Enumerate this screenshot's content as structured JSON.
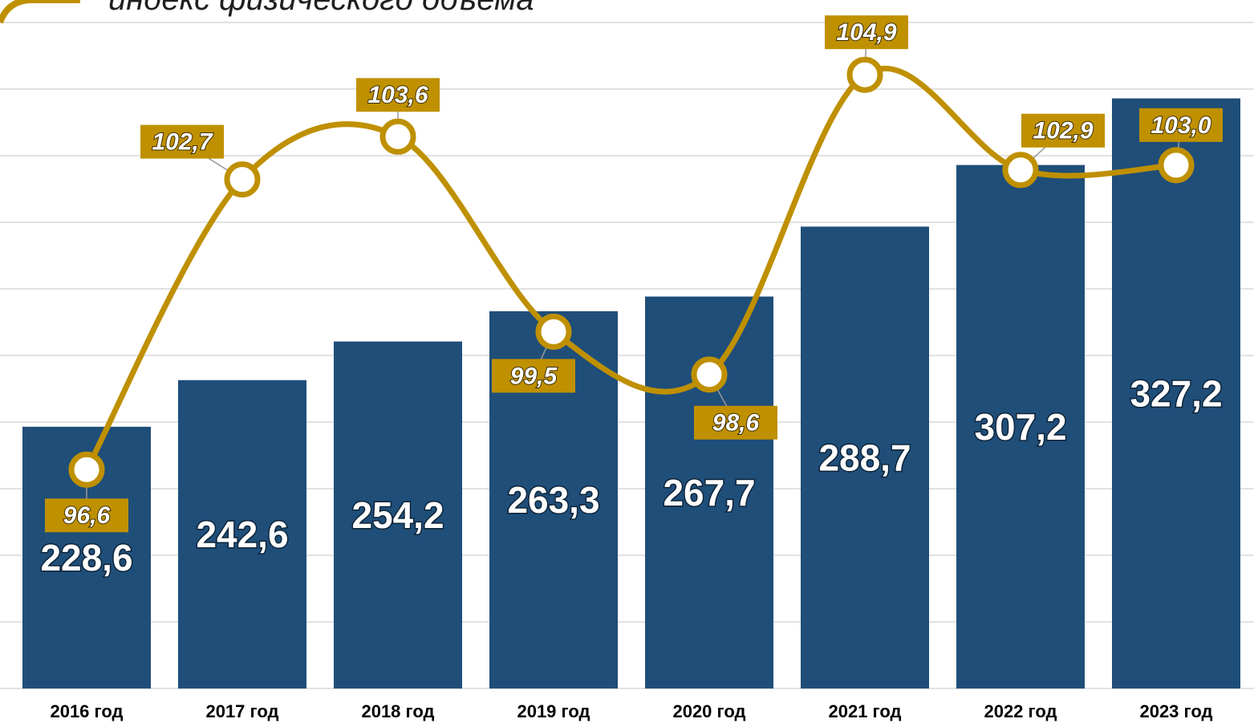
{
  "chart_data": {
    "type": "bar_line",
    "categories": [
      "2016 год",
      "2017 год",
      "2018 год",
      "2019 год",
      "2020 год",
      "2021 год",
      "2022 год",
      "2023 год"
    ],
    "series": [
      {
        "type": "bar",
        "color": "#1f4e79",
        "values": [
          228.6,
          242.6,
          254.2,
          263.3,
          267.7,
          288.7,
          307.2,
          327.2
        ],
        "value_labels": [
          "228,6",
          "242,6",
          "254,2",
          "263,3",
          "267,7",
          "288,7",
          "307,2",
          "327,2"
        ]
      },
      {
        "type": "line",
        "name": "индекс физического объема",
        "color": "#bf9000",
        "axis": "y2",
        "values": [
          96.6,
          102.7,
          103.6,
          99.5,
          98.6,
          104.9,
          102.9,
          103.0
        ],
        "value_labels": [
          "96,6",
          "102,7",
          "103,6",
          "99,5",
          "98,6",
          "104,9",
          "102,9",
          "103,0"
        ]
      }
    ],
    "ylim": [
      150,
      350
    ],
    "yticks": [
      150,
      170,
      190,
      210,
      230,
      250,
      270,
      290,
      310,
      330,
      350
    ],
    "y2lim": [
      92,
      106
    ],
    "grid": true,
    "legend": "top-left"
  }
}
